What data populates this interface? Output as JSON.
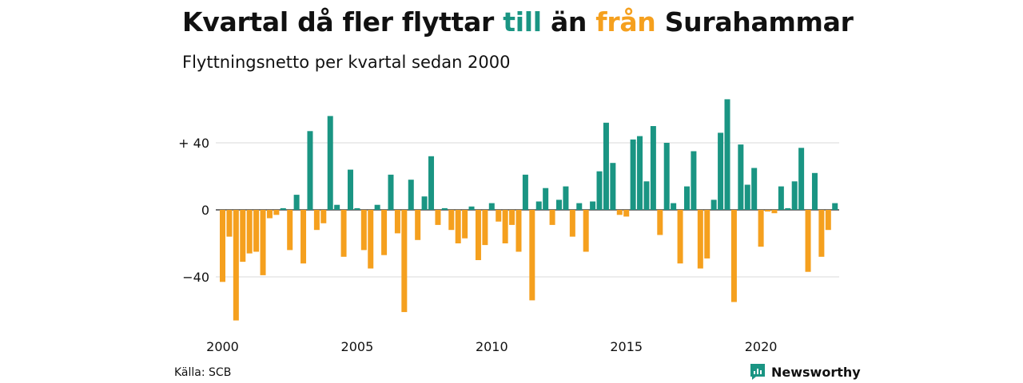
{
  "title": {
    "part1": "Kvartal då fler flyttar ",
    "till": "till",
    "part2": " än ",
    "fran": "från",
    "part3": " Surahammar"
  },
  "subtitle": "Flyttningsnetto per kvartal sedan 2000",
  "source": "Källa: SCB",
  "brand": {
    "name": "Newsworthy",
    "icon": "newsworthy-logo-icon"
  },
  "colors": {
    "positive": "#1a9583",
    "negative": "#f5a01e",
    "grid": "#d9d9d9",
    "text": "#111111"
  },
  "chart_data": {
    "type": "bar",
    "title": "Kvartal då fler flyttar till än från Surahammar",
    "subtitle": "Flyttningsnetto per kvartal sedan 2000",
    "xlabel": "",
    "ylabel": "",
    "x_start": "2000 Q1",
    "x_ticks": [
      {
        "label": "2000",
        "index": 0
      },
      {
        "label": "2005",
        "index": 20
      },
      {
        "label": "2010",
        "index": 40
      },
      {
        "label": "2015",
        "index": 60
      },
      {
        "label": "2020",
        "index": 80
      }
    ],
    "y_ticks": [
      {
        "label": "+ 40",
        "value": 40
      },
      {
        "label": "0",
        "value": 0
      },
      {
        "label": "−40",
        "value": -40
      }
    ],
    "ylim": [
      -67,
      68
    ],
    "grid": true,
    "values": [
      -43,
      -16,
      -66,
      -31,
      -26,
      -25,
      -39,
      -5,
      -3,
      1,
      -24,
      9,
      -32,
      47,
      -12,
      -8,
      56,
      3,
      -28,
      24,
      1,
      -24,
      -35,
      3,
      -27,
      21,
      -14,
      -61,
      18,
      -18,
      8,
      32,
      -9,
      1,
      -12,
      -20,
      -17,
      2,
      -30,
      -21,
      4,
      -7,
      -20,
      -9,
      -25,
      21,
      -54,
      5,
      13,
      -9,
      6,
      14,
      -16,
      4,
      -25,
      5,
      23,
      52,
      28,
      -3,
      -4,
      42,
      44,
      17,
      50,
      -15,
      40,
      4,
      -32,
      14,
      35,
      -35,
      -29,
      6,
      46,
      66,
      -55,
      39,
      15,
      25,
      -22,
      -1,
      -2,
      14,
      1,
      17,
      37,
      -37,
      22,
      -28,
      -12,
      4
    ]
  }
}
